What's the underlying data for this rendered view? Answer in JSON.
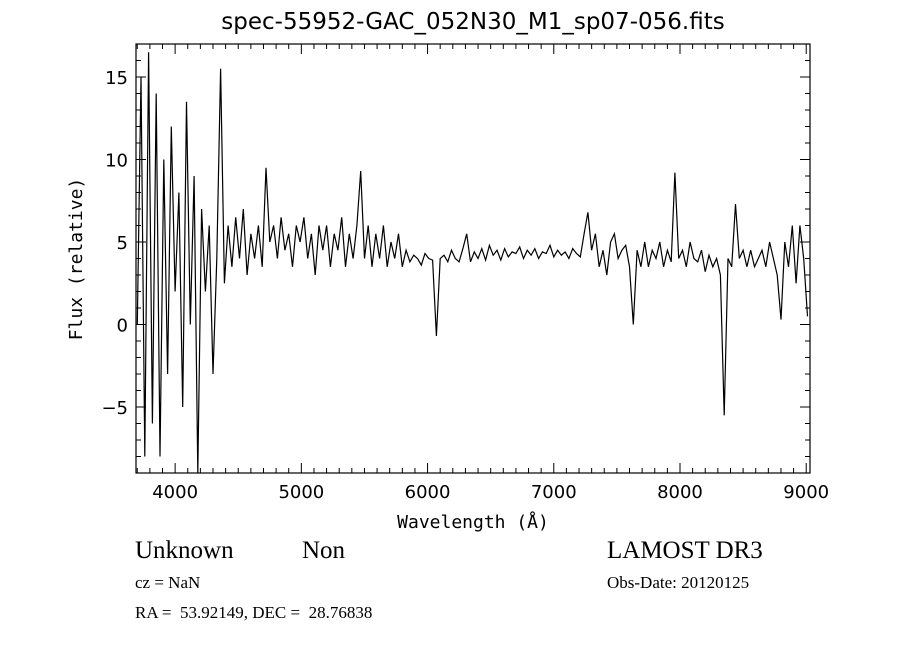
{
  "chart_data": {
    "type": "line",
    "title": "spec-55952-GAC_052N30_M1_sp07-056.fits",
    "xlabel": "Wavelength (Å)",
    "ylabel": "Flux (relative)",
    "xlim": [
      3690,
      9030
    ],
    "ylim": [
      -9,
      17
    ],
    "xticks": [
      4000,
      5000,
      6000,
      7000,
      8000,
      9000
    ],
    "yticks": [
      -5,
      0,
      5,
      10,
      15
    ],
    "x_minor_step": 100,
    "y_minor_step": 1,
    "grid": false,
    "series": [
      {
        "name": "spectrum",
        "x_start": 3700,
        "x_step": 30,
        "flux": [
          0,
          15,
          -8,
          16.5,
          -6,
          14,
          -8,
          10,
          -3,
          12,
          2,
          8,
          -5,
          13.5,
          0,
          9,
          -9,
          7,
          2,
          6,
          -3,
          4,
          15.5,
          2.5,
          6,
          3.5,
          6.5,
          4,
          7,
          3,
          5.5,
          4,
          6,
          3.5,
          9.5,
          5,
          6,
          4,
          6.5,
          4.5,
          5.5,
          3.5,
          6,
          5,
          6.5,
          4,
          5.5,
          3,
          6,
          4.5,
          6,
          3.5,
          5.5,
          4.5,
          6.5,
          3.5,
          5.5,
          4,
          6,
          9.3,
          4,
          6,
          3.5,
          5.5,
          4,
          6,
          3.5,
          5,
          4,
          5.5,
          3.5,
          4.5,
          3.8,
          4.2,
          4,
          3.6,
          4.3,
          4,
          3.9,
          -0.7,
          4,
          4.2,
          3.8,
          4.5,
          4,
          3.8,
          4.6,
          5.5,
          3.8,
          4.4,
          4,
          4.6,
          3.9,
          4.8,
          4.2,
          4.5,
          3.9,
          4.6,
          4.1,
          4.4,
          4.3,
          4.7,
          4,
          4.5,
          4.2,
          4.6,
          4,
          4.4,
          4.3,
          4.8,
          4.1,
          4.5,
          4.2,
          4.4,
          4,
          4.6,
          4.3,
          4.1,
          5.5,
          6.8,
          4.5,
          5.5,
          3.5,
          4.5,
          3,
          5,
          5.5,
          4,
          4.5,
          4.8,
          3.5,
          0,
          4.5,
          3.5,
          5,
          3.5,
          4.5,
          4,
          5,
          3.5,
          4.5,
          3.8,
          9.2,
          4,
          4.5,
          3.5,
          5,
          4,
          3.8,
          4.5,
          3.2,
          4.2,
          3.5,
          4,
          3,
          -5.5,
          4,
          3.5,
          7.3,
          4,
          4.5,
          3.5,
          4.5,
          3.5,
          4,
          4.5,
          3.5,
          5,
          4,
          3,
          0.3,
          5,
          3.5,
          6,
          2.5,
          6,
          4,
          0.5
        ]
      }
    ]
  },
  "info": {
    "object_class": "Unknown",
    "subclass": "Non",
    "survey": "LAMOST DR3",
    "cz": "cz = NaN",
    "obs_date": "Obs-Date: 20120125",
    "coords": "RA =  53.92149, DEC =  28.76838"
  }
}
